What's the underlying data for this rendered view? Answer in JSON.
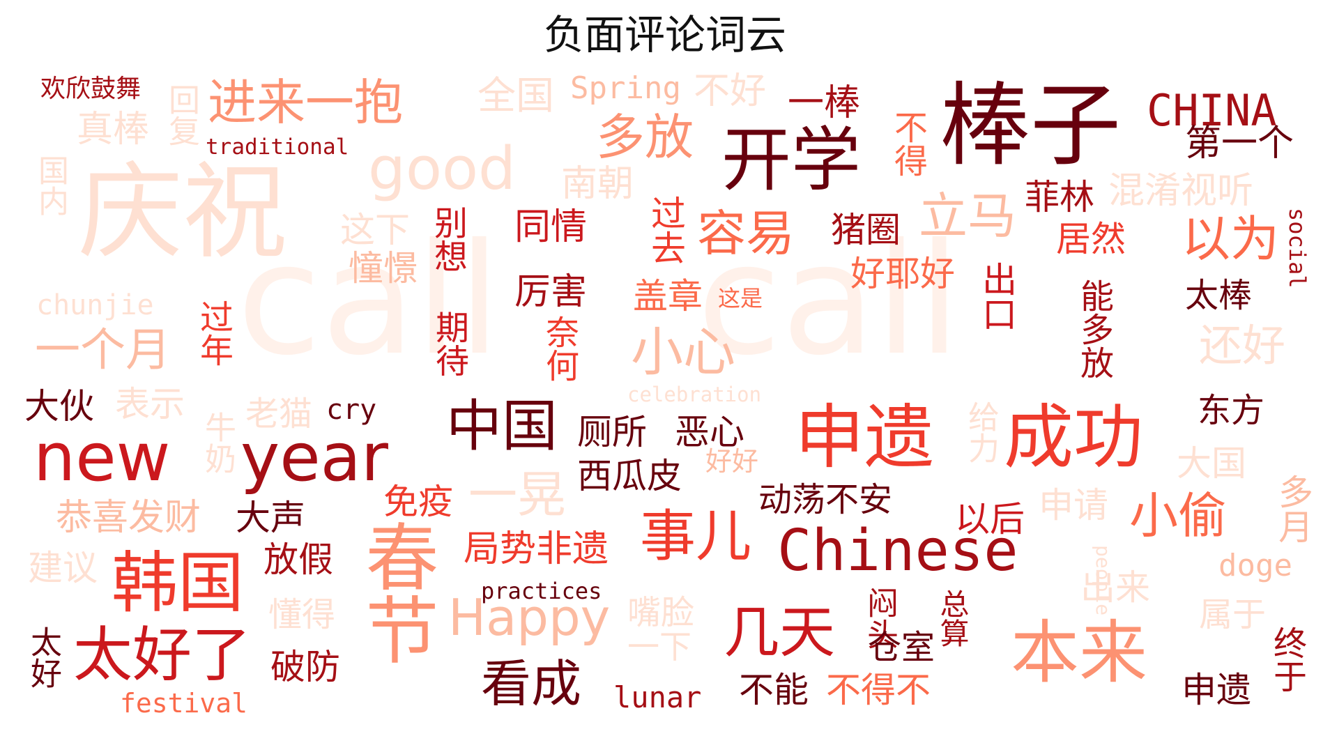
{
  "title": "负面评论词云",
  "colors": {
    "darkest": "#67000d",
    "dark": "#a50f15",
    "red": "#cb181d",
    "mid": "#ef3b2c",
    "salmon": "#fb6a4a",
    "light": "#fc9272",
    "pale": "#fcbba1",
    "palest": "#fee0d2",
    "ghost": "#fff0e8"
  },
  "words": [
    "call",
    "call",
    "庆祝",
    "棒子",
    "开学",
    "new",
    "year",
    "申遗",
    "成功",
    "Chinese",
    "中国",
    "春节",
    "本来",
    "事儿",
    "几天",
    "看成",
    "韩国",
    "太好了",
    "good",
    "进来一抱",
    "多放",
    "CHINA",
    "容易",
    "立马",
    "以为",
    "小心",
    "一个月",
    "一晃",
    "Happy",
    "还好",
    "小偷",
    "欢欣鼓舞",
    "真棒",
    "回复",
    "全国",
    "Spring",
    "不好",
    "一棒",
    "不得",
    "第一个",
    "traditional",
    "国内",
    "南朝",
    "菲林",
    "混淆视听",
    "过去",
    "这下",
    "同情",
    "别想",
    "猪圈",
    "居然",
    "social",
    "憧憬",
    "厉害",
    "盖章",
    "这是",
    "好耶好",
    "出口",
    "太棒",
    "chunjie",
    "过年",
    "期待",
    "奈何",
    "能多放",
    "表示",
    "牛奶",
    "老猫",
    "cry",
    "大伙",
    "celebration",
    "给力",
    "东方",
    "厕所",
    "恶心",
    "西瓜皮",
    "好好",
    "大国",
    "恭喜发财",
    "大声",
    "免疫",
    "动荡不安",
    "以后",
    "申请",
    "多月",
    "建议",
    "放假",
    "局势非遗",
    "practices",
    "people",
    "出来",
    "doge",
    "懂得",
    "嘴脸",
    "闷头",
    "总算",
    "属于",
    "一下",
    "仓室",
    "太好",
    "终于",
    "破防",
    "festival",
    "lunar",
    "不能",
    "不得不",
    "申遗"
  ]
}
